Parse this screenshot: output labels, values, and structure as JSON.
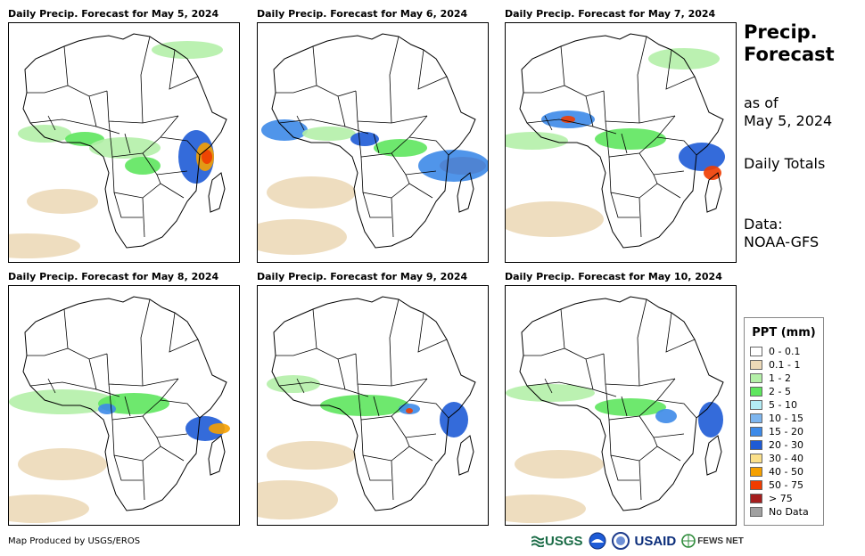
{
  "panels": [
    {
      "title": "Daily Precip. Forecast for May 5, 2024"
    },
    {
      "title": "Daily Precip. Forecast for May 6, 2024"
    },
    {
      "title": "Daily Precip. Forecast for May 7, 2024"
    },
    {
      "title": "Daily Precip. Forecast for May 8, 2024"
    },
    {
      "title": "Daily Precip. Forecast for May 9, 2024"
    },
    {
      "title": "Daily Precip. Forecast for May 10, 2024"
    }
  ],
  "side": {
    "title_line1": "Precip.",
    "title_line2": "Forecast",
    "asof_line1": "as of",
    "asof_line2": "May 5, 2024",
    "totals": "Daily Totals",
    "data_line1": "Data:",
    "data_line2": "NOAA-GFS"
  },
  "legend": {
    "title": "PPT (mm)",
    "items": [
      {
        "label": "0 - 0.1",
        "color": "#ffffff"
      },
      {
        "label": "0.1 - 1",
        "color": "#ecd9b8"
      },
      {
        "label": "1 - 2",
        "color": "#b4f0a8"
      },
      {
        "label": "2 - 5",
        "color": "#5ee65e"
      },
      {
        "label": "5 - 10",
        "color": "#b3ecf5"
      },
      {
        "label": "10 - 15",
        "color": "#7eb6ef"
      },
      {
        "label": "15 - 20",
        "color": "#3d8ae8"
      },
      {
        "label": "20 - 30",
        "color": "#1e5bd6"
      },
      {
        "label": "30 - 40",
        "color": "#fbe08a"
      },
      {
        "label": "40 - 50",
        "color": "#f5a000"
      },
      {
        "label": "50 - 75",
        "color": "#f03c00"
      },
      {
        "label": "> 75",
        "color": "#a51e1e"
      },
      {
        "label": "No Data",
        "color": "#a0a0a0"
      }
    ]
  },
  "footer": "Map Produced by USGS/EROS",
  "logos": {
    "usgs": "USGS",
    "usaid": "USAID",
    "fews": "FEWS NET"
  }
}
